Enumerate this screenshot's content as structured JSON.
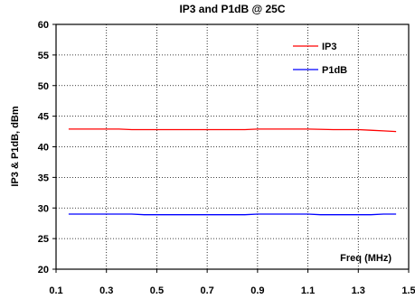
{
  "chart_data": {
    "type": "line",
    "title": "IP3 and P1dB @ 25C",
    "xlabel": "Freq (MHz)",
    "ylabel": "IP3 & P1dB, dBm",
    "xlim": [
      0.1,
      1.5
    ],
    "ylim": [
      20,
      60
    ],
    "x_ticks": [
      "0.1",
      "0.3",
      "0.5",
      "0.7",
      "0.9",
      "1.1",
      "1.3",
      "1.5"
    ],
    "y_ticks": [
      "20",
      "25",
      "30",
      "35",
      "40",
      "45",
      "50",
      "55",
      "60"
    ],
    "grid": true,
    "legend_position": "top-right",
    "series": [
      {
        "name": "IP3",
        "color": "#ff0000",
        "x": [
          0.15,
          0.2,
          0.3,
          0.35,
          0.4,
          0.45,
          0.5,
          0.6,
          0.7,
          0.8,
          0.85,
          0.9,
          1.0,
          1.1,
          1.2,
          1.3,
          1.35,
          1.4,
          1.45
        ],
        "y": [
          42.9,
          42.9,
          42.9,
          42.9,
          42.8,
          42.8,
          42.8,
          42.8,
          42.8,
          42.8,
          42.8,
          42.9,
          42.9,
          42.9,
          42.8,
          42.8,
          42.7,
          42.6,
          42.5
        ]
      },
      {
        "name": "P1dB",
        "color": "#0000ff",
        "x": [
          0.15,
          0.2,
          0.3,
          0.4,
          0.45,
          0.5,
          0.6,
          0.7,
          0.8,
          0.85,
          0.9,
          1.0,
          1.1,
          1.15,
          1.2,
          1.3,
          1.35,
          1.4,
          1.45
        ],
        "y": [
          29.0,
          29.0,
          29.0,
          29.0,
          28.9,
          28.9,
          28.9,
          28.9,
          28.9,
          28.9,
          29.0,
          29.0,
          29.0,
          28.9,
          28.9,
          28.9,
          28.9,
          29.0,
          29.0
        ]
      }
    ]
  }
}
